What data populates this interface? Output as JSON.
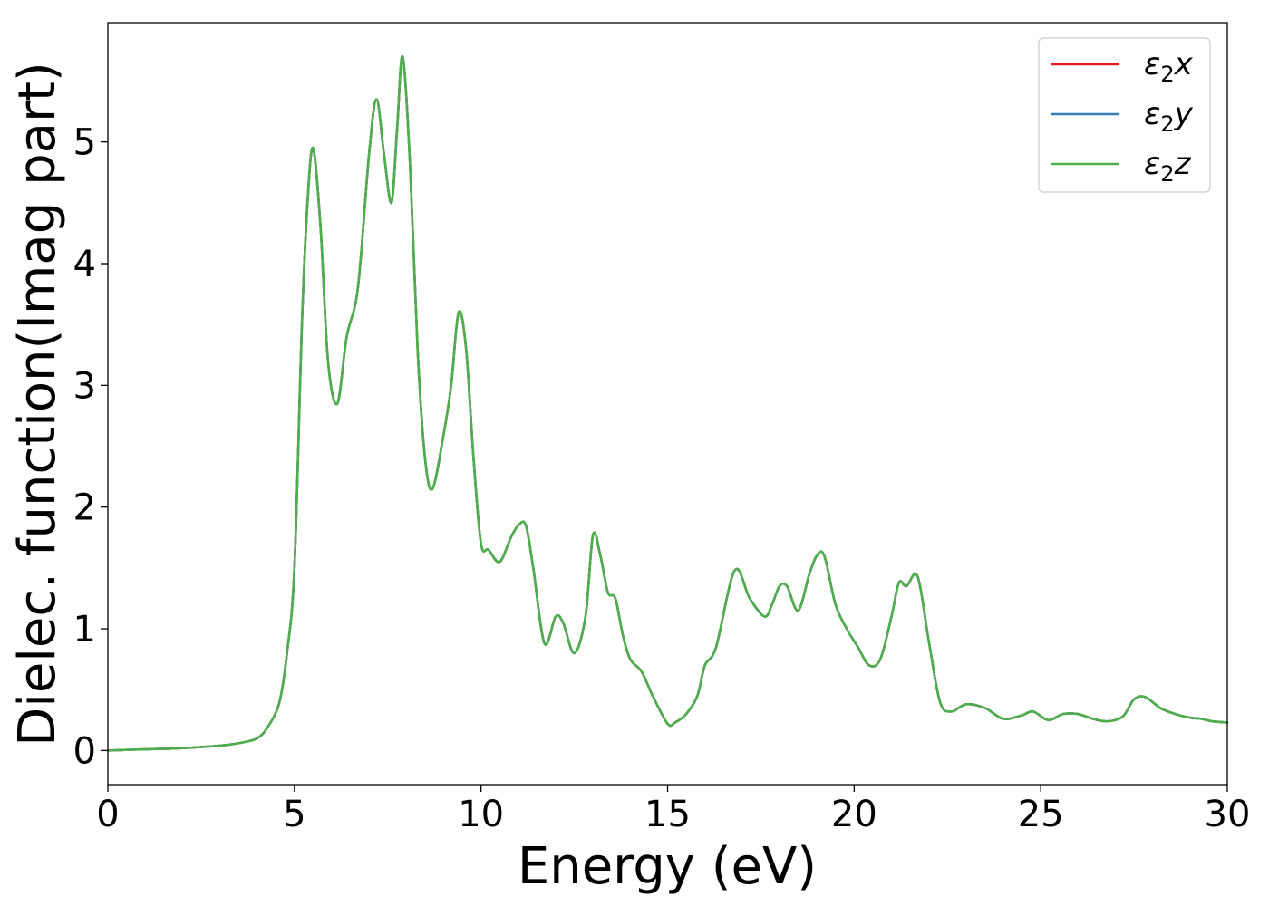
{
  "chart_data": {
    "type": "line",
    "title": "",
    "xlabel": "Energy (eV)",
    "ylabel": "Dielec. function(Imag part)",
    "xlim": [
      0,
      30
    ],
    "ylim": [
      -0.28,
      5.98
    ],
    "xticks": [
      0,
      5,
      10,
      15,
      20,
      25,
      30
    ],
    "yticks": [
      0,
      1,
      2,
      3,
      4,
      5
    ],
    "grid": false,
    "legend_position": "top-right",
    "legend": [
      {
        "series": "e2x",
        "base": "ε",
        "sub": "2",
        "suffix": "x",
        "color": "#e41a1c"
      },
      {
        "series": "e2y",
        "base": "ε",
        "sub": "2",
        "suffix": "y",
        "color": "#377eb8"
      },
      {
        "series": "e2z",
        "base": "ε",
        "sub": "2",
        "suffix": "z",
        "color": "#4daf4a"
      }
    ],
    "x": [
      0,
      1,
      2,
      3,
      3.5,
      4,
      4.3,
      4.6,
      4.8,
      5,
      5.2,
      5.35,
      5.5,
      5.7,
      5.9,
      6.15,
      6.4,
      6.7,
      7,
      7.2,
      7.4,
      7.6,
      7.75,
      7.9,
      8.1,
      8.3,
      8.5,
      8.7,
      9,
      9.2,
      9.4,
      9.6,
      9.8,
      10,
      10.2,
      10.5,
      10.8,
      11,
      11.2,
      11.4,
      11.7,
      12,
      12.2,
      12.5,
      12.8,
      13,
      13.2,
      13.4,
      13.6,
      13.8,
      14,
      14.3,
      14.6,
      15,
      15.2,
      15.5,
      15.8,
      16,
      16.3,
      16.8,
      17.2,
      17.6,
      17.8,
      18,
      18.2,
      18.5,
      18.8,
      19,
      19.2,
      19.5,
      19.8,
      20.1,
      20.4,
      20.7,
      21,
      21.2,
      21.4,
      21.7,
      22,
      22.3,
      22.6,
      23,
      23.5,
      24,
      24.5,
      24.8,
      25.2,
      25.6,
      26,
      26.4,
      26.8,
      27.2,
      27.5,
      27.8,
      28.2,
      28.6,
      29,
      29.3,
      29.6,
      30
    ],
    "series": [
      {
        "id": "e2x",
        "color": "#e41a1c",
        "values": [
          0.0,
          0.01,
          0.02,
          0.04,
          0.06,
          0.1,
          0.2,
          0.4,
          0.8,
          1.5,
          3.5,
          4.5,
          4.95,
          4.3,
          3.2,
          2.85,
          3.4,
          3.8,
          4.9,
          5.35,
          4.9,
          4.5,
          5.1,
          5.7,
          4.8,
          3.3,
          2.4,
          2.15,
          2.6,
          3.0,
          3.6,
          3.3,
          2.4,
          1.7,
          1.65,
          1.55,
          1.75,
          1.85,
          1.85,
          1.5,
          0.88,
          1.1,
          1.05,
          0.8,
          1.1,
          1.77,
          1.6,
          1.3,
          1.25,
          0.95,
          0.75,
          0.65,
          0.45,
          0.22,
          0.23,
          0.3,
          0.45,
          0.7,
          0.85,
          1.48,
          1.25,
          1.1,
          1.2,
          1.35,
          1.35,
          1.15,
          1.45,
          1.6,
          1.6,
          1.2,
          1.0,
          0.85,
          0.7,
          0.75,
          1.1,
          1.38,
          1.35,
          1.43,
          0.9,
          0.4,
          0.32,
          0.38,
          0.35,
          0.26,
          0.29,
          0.32,
          0.25,
          0.3,
          0.3,
          0.26,
          0.24,
          0.28,
          0.42,
          0.44,
          0.35,
          0.3,
          0.27,
          0.26,
          0.24,
          0.23
        ]
      },
      {
        "id": "e2y",
        "color": "#377eb8",
        "values": [
          0.0,
          0.01,
          0.02,
          0.04,
          0.06,
          0.1,
          0.2,
          0.4,
          0.8,
          1.5,
          3.5,
          4.5,
          4.95,
          4.3,
          3.2,
          2.85,
          3.4,
          3.8,
          4.9,
          5.35,
          4.9,
          4.5,
          5.1,
          5.7,
          4.8,
          3.3,
          2.4,
          2.15,
          2.6,
          3.0,
          3.6,
          3.3,
          2.4,
          1.7,
          1.65,
          1.55,
          1.75,
          1.85,
          1.85,
          1.5,
          0.88,
          1.1,
          1.05,
          0.8,
          1.1,
          1.77,
          1.6,
          1.3,
          1.25,
          0.95,
          0.75,
          0.65,
          0.45,
          0.22,
          0.23,
          0.3,
          0.45,
          0.7,
          0.85,
          1.48,
          1.25,
          1.1,
          1.2,
          1.35,
          1.35,
          1.15,
          1.45,
          1.6,
          1.6,
          1.2,
          1.0,
          0.85,
          0.7,
          0.75,
          1.1,
          1.38,
          1.35,
          1.43,
          0.9,
          0.4,
          0.32,
          0.38,
          0.35,
          0.26,
          0.29,
          0.32,
          0.25,
          0.3,
          0.3,
          0.26,
          0.24,
          0.28,
          0.42,
          0.44,
          0.35,
          0.3,
          0.27,
          0.26,
          0.24,
          0.23
        ]
      },
      {
        "id": "e2z",
        "color": "#4daf4a",
        "values": [
          0.0,
          0.01,
          0.02,
          0.04,
          0.06,
          0.1,
          0.2,
          0.4,
          0.8,
          1.5,
          3.5,
          4.5,
          4.95,
          4.3,
          3.2,
          2.85,
          3.4,
          3.8,
          4.9,
          5.35,
          4.9,
          4.5,
          5.1,
          5.7,
          4.8,
          3.3,
          2.4,
          2.15,
          2.6,
          3.0,
          3.6,
          3.3,
          2.4,
          1.7,
          1.65,
          1.55,
          1.75,
          1.85,
          1.85,
          1.5,
          0.88,
          1.1,
          1.05,
          0.8,
          1.1,
          1.77,
          1.6,
          1.3,
          1.25,
          0.95,
          0.75,
          0.65,
          0.45,
          0.22,
          0.23,
          0.3,
          0.45,
          0.7,
          0.85,
          1.48,
          1.25,
          1.1,
          1.2,
          1.35,
          1.35,
          1.15,
          1.45,
          1.6,
          1.6,
          1.2,
          1.0,
          0.85,
          0.7,
          0.75,
          1.1,
          1.38,
          1.35,
          1.43,
          0.9,
          0.4,
          0.32,
          0.38,
          0.35,
          0.26,
          0.29,
          0.32,
          0.25,
          0.3,
          0.3,
          0.26,
          0.24,
          0.28,
          0.42,
          0.44,
          0.35,
          0.3,
          0.27,
          0.26,
          0.24,
          0.23
        ]
      }
    ]
  }
}
